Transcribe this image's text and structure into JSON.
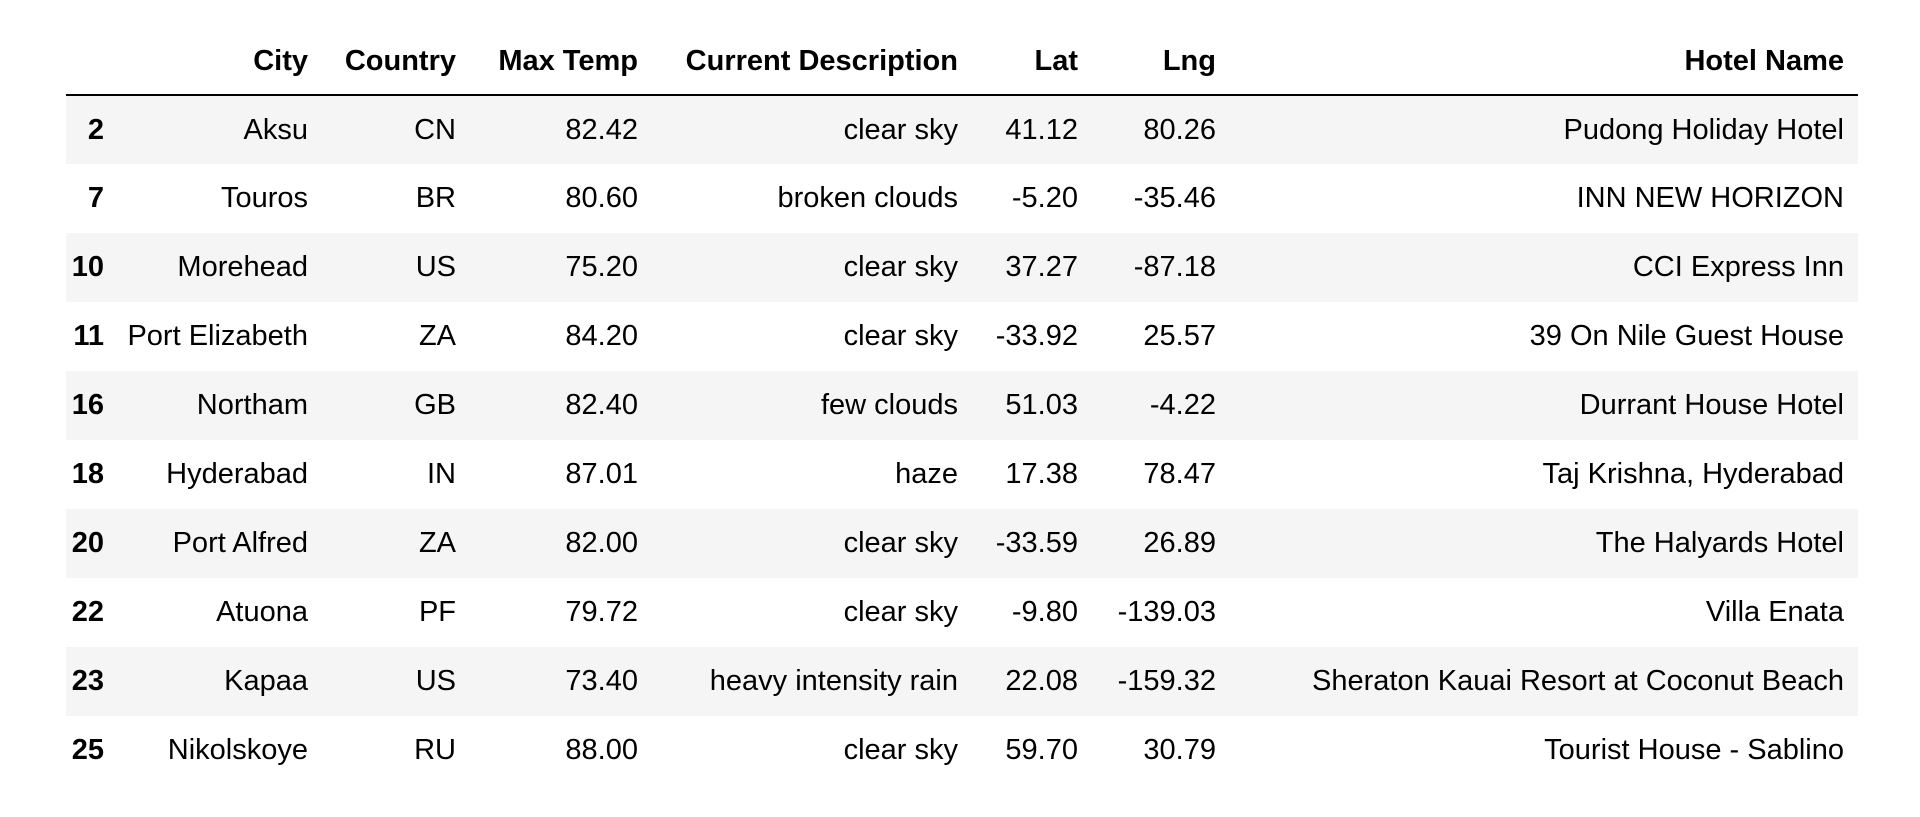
{
  "table": {
    "columns": [
      "",
      "City",
      "Country",
      "Max Temp",
      "Current Description",
      "Lat",
      "Lng",
      "Hotel Name"
    ],
    "rows": [
      {
        "index": "2",
        "city": "Aksu",
        "country": "CN",
        "max_temp": "82.42",
        "description": "clear sky",
        "lat": "41.12",
        "lng": "80.26",
        "hotel": "Pudong Holiday Hotel"
      },
      {
        "index": "7",
        "city": "Touros",
        "country": "BR",
        "max_temp": "80.60",
        "description": "broken clouds",
        "lat": "-5.20",
        "lng": "-35.46",
        "hotel": "INN NEW HORIZON"
      },
      {
        "index": "10",
        "city": "Morehead",
        "country": "US",
        "max_temp": "75.20",
        "description": "clear sky",
        "lat": "37.27",
        "lng": "-87.18",
        "hotel": "CCI Express Inn"
      },
      {
        "index": "11",
        "city": "Port Elizabeth",
        "country": "ZA",
        "max_temp": "84.20",
        "description": "clear sky",
        "lat": "-33.92",
        "lng": "25.57",
        "hotel": "39 On Nile Guest House"
      },
      {
        "index": "16",
        "city": "Northam",
        "country": "GB",
        "max_temp": "82.40",
        "description": "few clouds",
        "lat": "51.03",
        "lng": "-4.22",
        "hotel": "Durrant House Hotel"
      },
      {
        "index": "18",
        "city": "Hyderabad",
        "country": "IN",
        "max_temp": "87.01",
        "description": "haze",
        "lat": "17.38",
        "lng": "78.47",
        "hotel": "Taj Krishna, Hyderabad"
      },
      {
        "index": "20",
        "city": "Port Alfred",
        "country": "ZA",
        "max_temp": "82.00",
        "description": "clear sky",
        "lat": "-33.59",
        "lng": "26.89",
        "hotel": "The Halyards Hotel"
      },
      {
        "index": "22",
        "city": "Atuona",
        "country": "PF",
        "max_temp": "79.72",
        "description": "clear sky",
        "lat": "-9.80",
        "lng": "-139.03",
        "hotel": "Villa Enata"
      },
      {
        "index": "23",
        "city": "Kapaa",
        "country": "US",
        "max_temp": "73.40",
        "description": "heavy intensity rain",
        "lat": "22.08",
        "lng": "-159.32",
        "hotel": "Sheraton Kauai Resort at Coconut Beach"
      },
      {
        "index": "25",
        "city": "Nikolskoye",
        "country": "RU",
        "max_temp": "88.00",
        "description": "clear sky",
        "lat": "59.70",
        "lng": "30.79",
        "hotel": "Tourist House - Sablino"
      }
    ]
  }
}
